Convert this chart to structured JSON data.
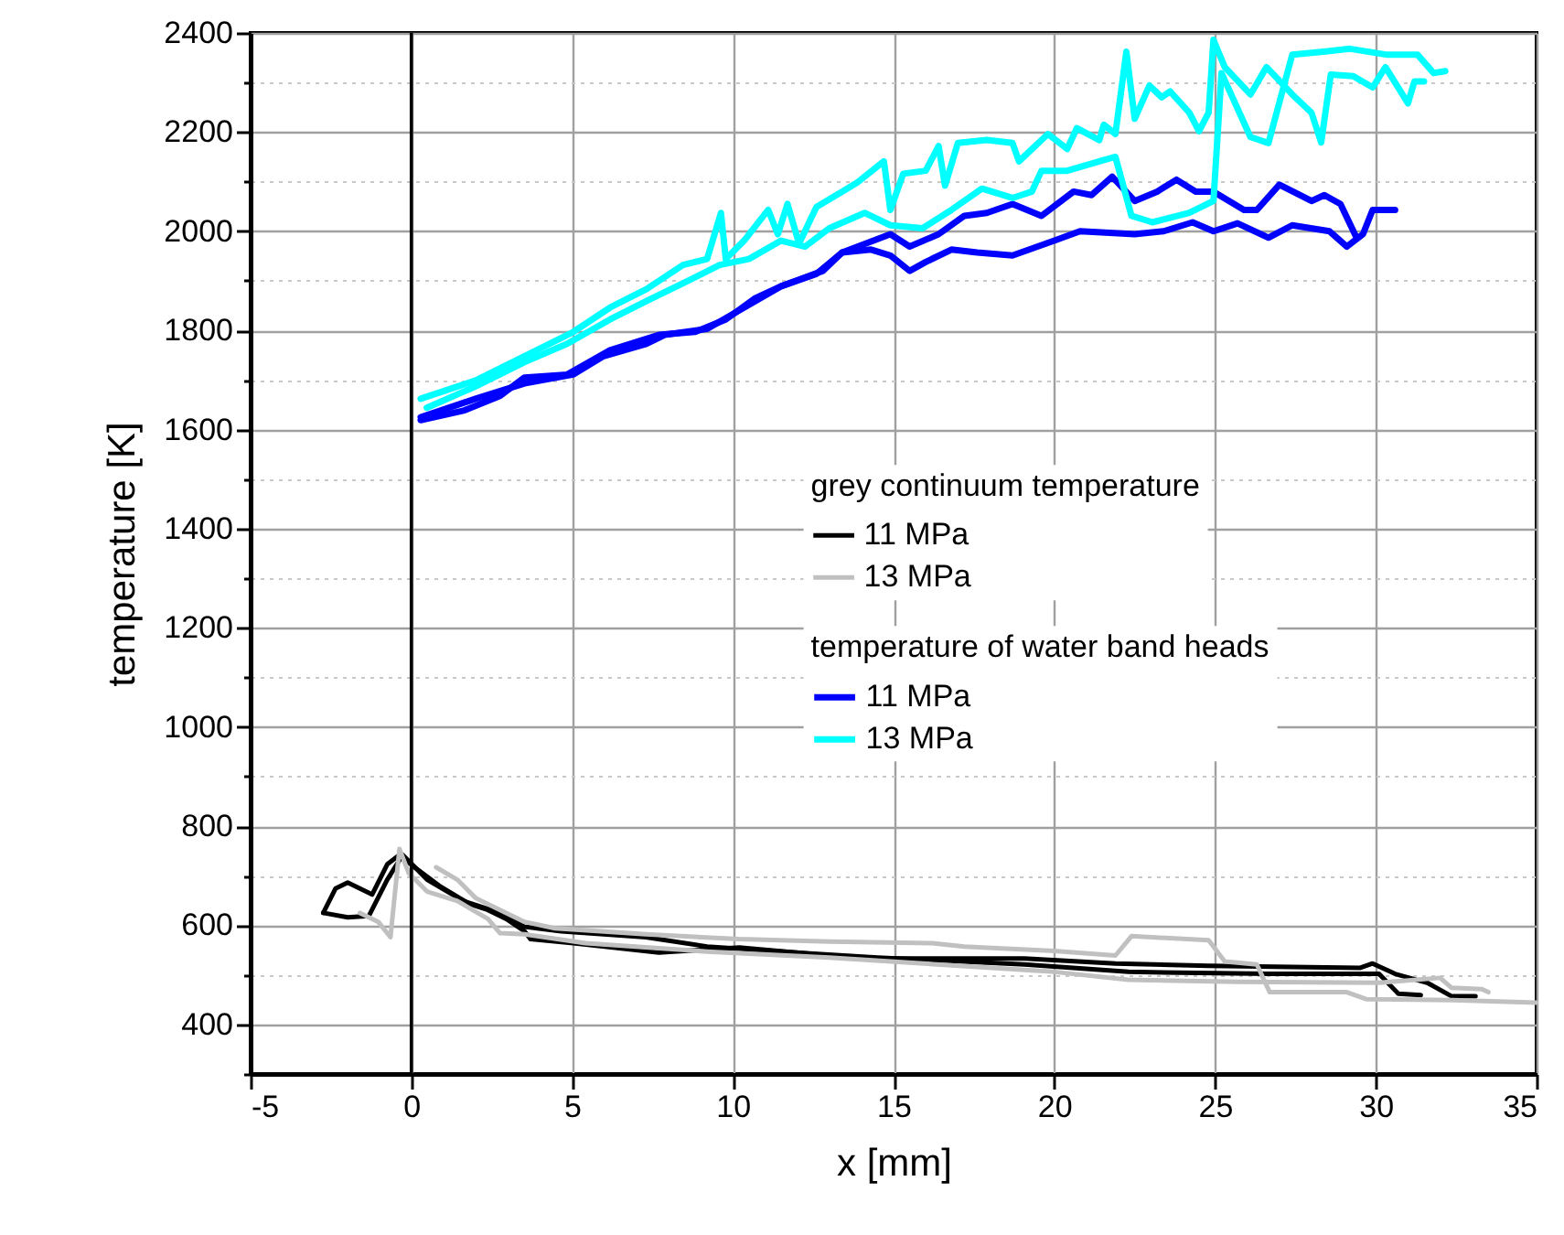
{
  "chart_data": {
    "type": "line",
    "xlabel": "x [mm]",
    "ylabel": "temperature [K]",
    "xlim": [
      -5,
      35
    ],
    "xticks": [
      -5,
      0,
      5,
      10,
      15,
      20,
      25,
      30,
      35
    ],
    "ylim": [
      300,
      2400
    ],
    "yticks": [
      {
        "value": 300,
        "label": null
      },
      400,
      {
        "value": 500,
        "label": null
      },
      600,
      {
        "value": 700,
        "label": null
      },
      800,
      {
        "value": 900,
        "label": null
      },
      1000,
      {
        "value": 1100,
        "label": null
      },
      1200,
      {
        "value": 1300,
        "label": null
      },
      1400,
      {
        "value": 1500,
        "label": null
      },
      1600,
      {
        "value": 1700,
        "label": null
      },
      1800,
      {
        "value": 1900,
        "label": null
      },
      2000,
      {
        "value": 2100,
        "label": null
      },
      2200,
      {
        "value": 2300,
        "label": null
      },
      2400
    ],
    "grid": true,
    "legend": "right",
    "legend_title": [
      "grey continuum temperature",
      "temperature of water band heads"
    ],
    "ref_lines": [
      {
        "axis": "x",
        "value": 0,
        "color": "#000000"
      }
    ],
    "series": [
      {
        "name": "11 MPa",
        "color": "#000000",
        "x": [
          -2.74,
          -2.36,
          -1.98,
          -1.22,
          -0.75,
          -0.37,
          0.1,
          0.86,
          1.81,
          2.38,
          2.95,
          3.52,
          3.71,
          5.04,
          7.7,
          10.2,
          13.0,
          14.5,
          19.07,
          21.9,
          24.8,
          29.5,
          29.9,
          30.6,
          31.6,
          32.35,
          33.1
        ],
        "values": [
          625,
          674,
          686,
          662,
          723,
          742,
          717,
          680,
          643,
          631,
          613,
          588,
          572,
          564,
          545,
          555,
          539,
          533,
          533,
          523,
          518,
          514,
          523,
          502,
          484,
          457,
          457
        ]
      },
      {
        "color": "#000000",
        "x": [
          -2.74,
          -1.98,
          -1.32,
          -0.75,
          -0.27,
          0.49,
          1.62,
          2.76,
          3.52,
          4.66,
          7.3,
          9.2,
          12.4,
          14.5,
          19.07,
          22.3,
          26.7,
          30.1,
          30.7,
          31.4
        ],
        "values": [
          625,
          616,
          619,
          692,
          742,
          692,
          649,
          625,
          597,
          588,
          576,
          557,
          543,
          535,
          521,
          506,
          502,
          502,
          462,
          459
        ]
      },
      {
        "name": "13 MPa",
        "color": "#c0c0c0",
        "x": [
          -1.6,
          -1.03,
          -0.65,
          -0.37,
          -0.08,
          0.49,
          1.43,
          2.38,
          2.76,
          3.52,
          5.42,
          9.2,
          13.0,
          20.0,
          22.3,
          25.7,
          30.1,
          32.0,
          32.35,
          33.3,
          33.5
        ],
        "values": [
          625,
          607,
          576,
          754,
          705,
          668,
          649,
          613,
          584,
          582,
          564,
          547,
          535,
          506,
          490,
          486,
          484,
          494,
          474,
          471,
          465
        ]
      },
      {
        "color": "#c0c0c0",
        "x": [
          0.77,
          1.43,
          2.0,
          2.57,
          3.52,
          4.47,
          7.3,
          10.2,
          13.0,
          16.2,
          17.2,
          20.0,
          21.9,
          22.4,
          24.8,
          25.3,
          26.3,
          26.7,
          29.1,
          29.7,
          32.4,
          35.0
        ],
        "values": [
          717,
          692,
          655,
          637,
          607,
          594,
          582,
          572,
          567,
          564,
          557,
          548,
          539,
          578,
          570,
          527,
          521,
          465,
          465,
          451,
          449,
          444
        ]
      },
      {
        "name": "11 MPa",
        "color": "#0000ff",
        "x": [
          0.29,
          1.62,
          2.76,
          3.52,
          4.85,
          6.18,
          7.7,
          8.83,
          9.78,
          10.7,
          11.5,
          12.8,
          13.4,
          14.3,
          14.9,
          15.5,
          16.0,
          16.8,
          17.6,
          18.7,
          20.0,
          20.8,
          22.5,
          23.4,
          24.3,
          24.95,
          25.7,
          26.66,
          27.4,
          28.56,
          29.1,
          29.6,
          29.9,
          30.6
        ],
        "values": [
          1619,
          1638,
          1668,
          1705,
          1711,
          1760,
          1791,
          1797,
          1822,
          1865,
          1889,
          1920,
          1957,
          1963,
          1951,
          1920,
          1938,
          1963,
          1957,
          1951,
          1981,
          2000,
          1994,
          2000,
          2018,
          2000,
          2016,
          1987,
          2012,
          2000,
          1969,
          1994,
          2043,
          2043
        ]
      },
      {
        "color": "#0000ff",
        "x": [
          0.29,
          2.0,
          3.52,
          5.04,
          5.98,
          7.31,
          7.88,
          9.2,
          10.35,
          11.5,
          12.6,
          13.4,
          14.9,
          15.5,
          16.4,
          17.2,
          17.9,
          18.7,
          19.6,
          20.6,
          21.16,
          21.8,
          22.5,
          23.2,
          23.8,
          24.4,
          24.95,
          25.9,
          26.3,
          27.0,
          28.0,
          28.4,
          28.9,
          29.4
        ],
        "values": [
          1625,
          1662,
          1693,
          1711,
          1748,
          1773,
          1791,
          1803,
          1846,
          1889,
          1914,
          1957,
          1994,
          1969,
          1994,
          2031,
          2037,
          2055,
          2031,
          2080,
          2073,
          2110,
          2061,
          2080,
          2104,
          2080,
          2080,
          2043,
          2043,
          2094,
          2061,
          2073,
          2055,
          1987
        ]
      },
      {
        "name": "13 MPa",
        "color": "#00ffff",
        "x": [
          0.29,
          2.0,
          3.52,
          5.04,
          6.18,
          7.31,
          8.45,
          9.2,
          9.63,
          9.78,
          10.35,
          11.1,
          11.4,
          11.7,
          12.06,
          12.6,
          13.4,
          13.86,
          14.7,
          14.9,
          15.3,
          16.0,
          16.4,
          16.6,
          17.0,
          17.9,
          18.7,
          18.9,
          19.8,
          20.4,
          20.7,
          21.4,
          21.54,
          21.9,
          22.24,
          22.5,
          22.96,
          23.34,
          23.6,
          24.2,
          24.5,
          24.8,
          24.95,
          25.3,
          26.1,
          26.6,
          27.4,
          28.0,
          28.3,
          28.6,
          29.3,
          29.9,
          30.3,
          31.0,
          31.2,
          31.5
        ],
        "values": [
          1662,
          1699,
          1748,
          1797,
          1846,
          1883,
          1932,
          1944,
          2037,
          1944,
          1981,
          2043,
          1994,
          2055,
          1975,
          2049,
          2080,
          2098,
          2141,
          2043,
          2116,
          2122,
          2172,
          2092,
          2178,
          2184,
          2178,
          2141,
          2196,
          2166,
          2208,
          2184,
          2215,
          2196,
          2362,
          2227,
          2294,
          2270,
          2282,
          2239,
          2202,
          2239,
          2386,
          2331,
          2276,
          2331,
          2276,
          2239,
          2179,
          2316,
          2313,
          2290,
          2331,
          2258,
          2302,
          2302
        ]
      },
      {
        "color": "#00ffff",
        "x": [
          0.48,
          2.0,
          3.52,
          4.85,
          6.18,
          7.31,
          8.45,
          9.59,
          10.5,
          11.5,
          12.25,
          13.0,
          14.1,
          14.9,
          15.9,
          16.8,
          17.75,
          18.7,
          19.3,
          19.6,
          20.4,
          21.4,
          21.9,
          22.4,
          23.05,
          24.2,
          24.95,
          25.2,
          26.1,
          26.66,
          27.4,
          28.37,
          29.2,
          30.36,
          31.3,
          31.8,
          32.16
        ],
        "values": [
          1644,
          1687,
          1736,
          1773,
          1822,
          1859,
          1895,
          1932,
          1944,
          1981,
          1969,
          2006,
          2037,
          2012,
          2006,
          2043,
          2086,
          2067,
          2080,
          2122,
          2122,
          2141,
          2150,
          2031,
          2018,
          2037,
          2061,
          2319,
          2190,
          2178,
          2356,
          2362,
          2368,
          2356,
          2356,
          2319,
          2323
        ]
      }
    ]
  }
}
